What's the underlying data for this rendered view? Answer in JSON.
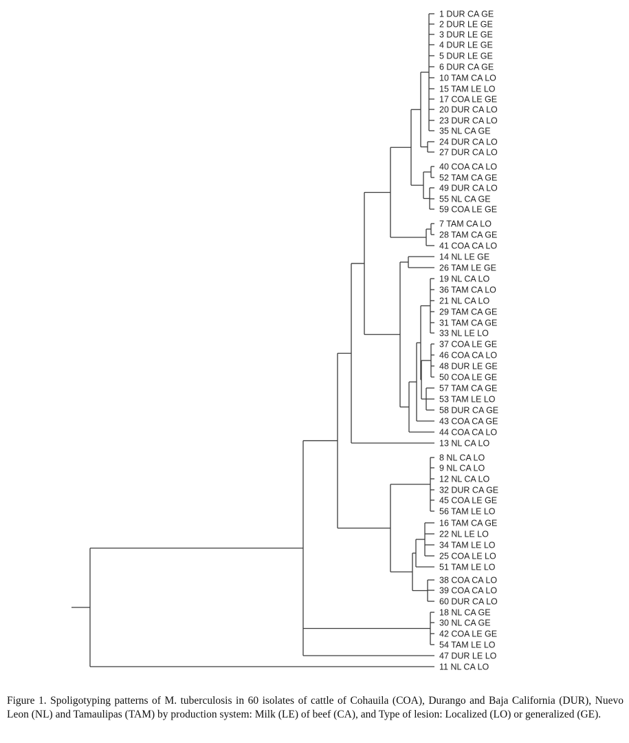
{
  "leaves": [
    {
      "id": "1",
      "label": "1 DUR CA GE"
    },
    {
      "id": "2",
      "label": "2 DUR  LE GE"
    },
    {
      "id": "3",
      "label": "3 DUR  LE GE"
    },
    {
      "id": "4",
      "label": "4 DUR  LE GE"
    },
    {
      "id": "5",
      "label": "5 DUR  LE GE"
    },
    {
      "id": "6",
      "label": "6 DUR CA GE"
    },
    {
      "id": "10",
      "label": "10 TAM CA LO"
    },
    {
      "id": "15",
      "label": "15 TAM  LE LO"
    },
    {
      "id": "17",
      "label": "17 COA  LE GE"
    },
    {
      "id": "20",
      "label": "20 DUR CA LO"
    },
    {
      "id": "23",
      "label": "23 DUR CA LO"
    },
    {
      "id": "35",
      "label": "35   NL CA GE"
    },
    {
      "id": "24",
      "label": "24 DUR CA LO"
    },
    {
      "id": "27",
      "label": "27 DUR CA LO"
    },
    {
      "id": "40",
      "label": "40 COA CA LO"
    },
    {
      "id": "52",
      "label": "52 TAM CA GE"
    },
    {
      "id": "49",
      "label": "49 DUR CA LO"
    },
    {
      "id": "55",
      "label": "55   NL CA GE"
    },
    {
      "id": "59",
      "label": "59 COA  LE GE"
    },
    {
      "id": "7",
      "label": "7 TAM CA LO"
    },
    {
      "id": "28",
      "label": "28 TAM CA GE"
    },
    {
      "id": "41",
      "label": "41 COA CA LO"
    },
    {
      "id": "14",
      "label": "14   NL  LE GE"
    },
    {
      "id": "26",
      "label": "26 TAM LE GE"
    },
    {
      "id": "19",
      "label": "19   NL CA LO"
    },
    {
      "id": "36",
      "label": "36 TAM CA LO"
    },
    {
      "id": "21",
      "label": "21   NL CA LO"
    },
    {
      "id": "29",
      "label": "29 TAM CA GE"
    },
    {
      "id": "31",
      "label": "31 TAM CA GE"
    },
    {
      "id": "33",
      "label": "33   NL  LE LO"
    },
    {
      "id": "37",
      "label": "37 COA  LE GE"
    },
    {
      "id": "46",
      "label": "46 COA CA LO"
    },
    {
      "id": "48",
      "label": "48 DUR  LE GE"
    },
    {
      "id": "50",
      "label": "50 COA  LE GE"
    },
    {
      "id": "57",
      "label": "57 TAM CA GE"
    },
    {
      "id": "53",
      "label": "53 TAM  LE LO"
    },
    {
      "id": "58",
      "label": "58 DUR CA GE"
    },
    {
      "id": "43",
      "label": "43 COA CA GE"
    },
    {
      "id": "44",
      "label": "44 COA CA LO"
    },
    {
      "id": "13",
      "label": "13   NL CA LO"
    },
    {
      "id": "8",
      "label": "8   NL CA LO"
    },
    {
      "id": "9",
      "label": "9   NL CA LO"
    },
    {
      "id": "12",
      "label": "12   NL CA LO"
    },
    {
      "id": "32",
      "label": "32 DUR CA GE"
    },
    {
      "id": "45",
      "label": "45 COA  LE GE"
    },
    {
      "id": "56",
      "label": "56 TAM  LE LO"
    },
    {
      "id": "16",
      "label": "16 TAM CA GE"
    },
    {
      "id": "22",
      "label": "22   NL  LE LO"
    },
    {
      "id": "34",
      "label": "34 TAM  LE LO"
    },
    {
      "id": "25",
      "label": "25 COA  LE LO"
    },
    {
      "id": "51",
      "label": "51 TAM  LE LO"
    },
    {
      "id": "38",
      "label": "38 COA CA LO"
    },
    {
      "id": "39",
      "label": "39 COA CA LO"
    },
    {
      "id": "60",
      "label": "60 DUR CA LO"
    },
    {
      "id": "18",
      "label": "18   NL CA GE"
    },
    {
      "id": "30",
      "label": "30   NL CA GE"
    },
    {
      "id": "42",
      "label": "42 COA  LE GE"
    },
    {
      "id": "54",
      "label": "54 TAM  LE LO"
    },
    {
      "id": "47",
      "label": "47 DUR  LE LO"
    },
    {
      "id": "11",
      "label": "11   NL CA LO"
    }
  ],
  "caption": "Figure 1. Spoligotyping patterns of M. tuberculosis in 60 isolates of cattle of Cohauila (COA), Durango and Baja California (DUR), Nuevo Leon (NL) and Tamaulipas (TAM) by production system: Milk (LE) of beef (CA), and Type of lesion: Localized (LO) or generalized (GE)."
}
